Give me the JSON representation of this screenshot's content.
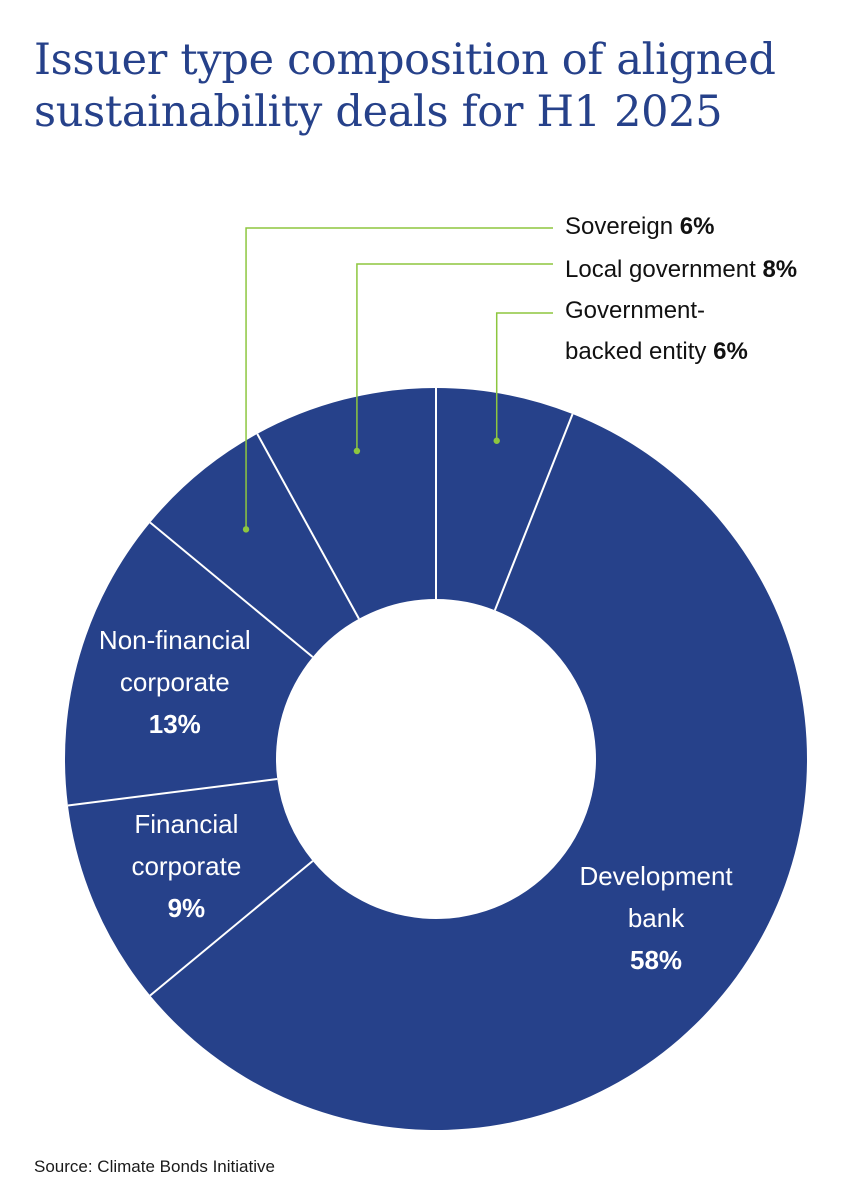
{
  "title": {
    "line1": "Issuer type composition of aligned",
    "line2": "sustainability deals for H1 2025"
  },
  "source": "Source: Climate Bonds Initiative",
  "colors": {
    "title": "#26418a",
    "slice": "#26418a",
    "divider": "#ffffff",
    "leader": "#8dc63f",
    "callout_text": "#111111",
    "inside_text": "#ffffff"
  },
  "chart_data": {
    "type": "pie",
    "variant": "donut",
    "title": "Issuer type composition of aligned sustainability deals for H1 2025",
    "unit": "%",
    "slices": [
      {
        "key": "gov-backed",
        "label": "Government-backed entity",
        "label_lines": [
          "Government-",
          "backed entity"
        ],
        "value": 6,
        "value_text": "6%",
        "label_style": "callout"
      },
      {
        "key": "dev-bank",
        "label": "Development bank",
        "label_lines": [
          "Development",
          "bank"
        ],
        "value": 58,
        "value_text": "58%",
        "label_style": "inside"
      },
      {
        "key": "fin-corp",
        "label": "Financial corporate",
        "label_lines": [
          "Financial",
          "corporate"
        ],
        "value": 9,
        "value_text": "9%",
        "label_style": "inside"
      },
      {
        "key": "nonfin-corp",
        "label": "Non-financial corporate",
        "label_lines": [
          "Non-financial",
          "corporate"
        ],
        "value": 13,
        "value_text": "13%",
        "label_style": "inside"
      },
      {
        "key": "sovereign",
        "label": "Sovereign",
        "label_lines": [
          "Sovereign"
        ],
        "value": 6,
        "value_text": "6%",
        "label_style": "callout"
      },
      {
        "key": "local-gov",
        "label": "Local government",
        "label_lines": [
          "Local government"
        ],
        "value": 8,
        "value_text": "8%",
        "label_style": "callout"
      }
    ],
    "start_angle_deg": 0,
    "direction": "clockwise",
    "legend": "none"
  }
}
